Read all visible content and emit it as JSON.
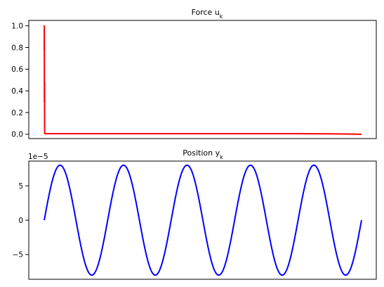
{
  "chart_data": [
    {
      "type": "line",
      "title": "Force u",
      "title_sub": "k",
      "xlabel": "",
      "ylabel": "",
      "ylim": [
        -0.04,
        1.05
      ],
      "yticks": [
        0.0,
        0.2,
        0.4,
        0.6,
        0.8,
        1.0
      ],
      "ytick_labels": [
        "0.0",
        "0.2",
        "0.4",
        "0.6",
        "0.8",
        "1.0"
      ],
      "xticks_visible": false,
      "grid": false,
      "series": [
        {
          "color": "#ff0000",
          "x": [
            0,
            0.02,
            0.05,
            0.1,
            0.12,
            0.15,
            0.2,
            0.5,
            1,
            5,
            20,
            40,
            60,
            80,
            90,
            95,
            100
          ],
          "values": [
            0.78,
            1.0,
            0.3,
            0.47,
            0.05,
            0.01,
            0.005,
            0.005,
            0.005,
            0.005,
            0.005,
            0.005,
            0.005,
            0.005,
            0.004,
            0.002,
            0.0
          ]
        }
      ]
    },
    {
      "type": "line",
      "title": "Position y",
      "title_sub": "k",
      "xlabel": "",
      "ylabel": "",
      "offset_text": "1e−5",
      "ylim": [
        -8.6,
        8.6
      ],
      "yticks": [
        -5,
        0,
        5
      ],
      "ytick_labels": [
        "−5",
        "0",
        "5"
      ],
      "xticks_visible": false,
      "grid": false,
      "series": [
        {
          "color": "#0000ff",
          "function": "sine",
          "amplitude": 8.0,
          "cycles": 5,
          "phase_deg": 0,
          "x_start": 0,
          "x_end": 100
        }
      ]
    }
  ]
}
